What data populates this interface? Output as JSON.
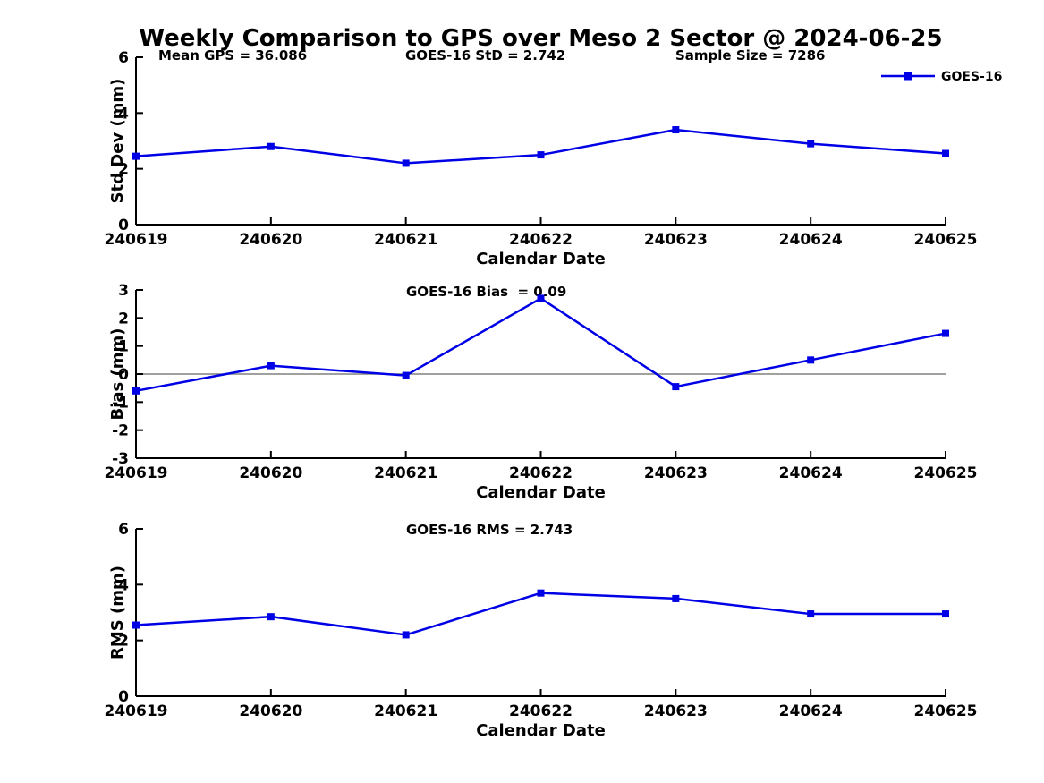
{
  "figure": {
    "title": "Weekly Comparison to GPS over Meso 2 Sector @ 2024-06-25"
  },
  "colors": {
    "line": "#0000e6",
    "zero_line": "#808080",
    "axis": "#000000",
    "text": "#000000",
    "background": "#ffffff"
  },
  "legend": {
    "label": "GOES-16",
    "position": "top-right",
    "marker": "filled-square"
  },
  "chart_data": [
    {
      "type": "line",
      "name": "std-dev",
      "title": "",
      "xlabel": "Calendar Date",
      "ylabel": "Std Dev (mm)",
      "categories": [
        "240619",
        "240620",
        "240621",
        "240622",
        "240623",
        "240624",
        "240625"
      ],
      "series": [
        {
          "name": "GOES-16",
          "values": [
            2.45,
            2.8,
            2.2,
            2.5,
            3.4,
            2.9,
            2.55
          ]
        }
      ],
      "ylim": [
        0,
        6
      ],
      "yticks": [
        0,
        2,
        4,
        6
      ],
      "grid": false,
      "zero_line": false,
      "legend_visible": true,
      "annotations": [
        "Mean GPS = 36.086",
        "GOES-16 StD = 2.742",
        "Sample Size = 7286"
      ]
    },
    {
      "type": "line",
      "name": "bias",
      "title": "",
      "xlabel": "Calendar Date",
      "ylabel": "Bias (mm)",
      "categories": [
        "240619",
        "240620",
        "240621",
        "240622",
        "240623",
        "240624",
        "240625"
      ],
      "series": [
        {
          "name": "GOES-16",
          "values": [
            -0.6,
            0.3,
            -0.05,
            2.7,
            -0.45,
            0.5,
            1.45
          ]
        }
      ],
      "ylim": [
        -3,
        3
      ],
      "yticks": [
        -3,
        -2,
        -1,
        0,
        1,
        2,
        3
      ],
      "grid": false,
      "zero_line": true,
      "legend_visible": false,
      "annotations": [
        "GOES-16 Bias  = 0.09"
      ]
    },
    {
      "type": "line",
      "name": "rms",
      "title": "",
      "xlabel": "Calendar Date",
      "ylabel": "RMS (mm)",
      "categories": [
        "240619",
        "240620",
        "240621",
        "240622",
        "240623",
        "240624",
        "240625"
      ],
      "series": [
        {
          "name": "GOES-16",
          "values": [
            2.55,
            2.85,
            2.2,
            3.7,
            3.5,
            2.95,
            2.95
          ]
        }
      ],
      "ylim": [
        0,
        6
      ],
      "yticks": [
        0,
        2,
        4,
        6
      ],
      "grid": false,
      "zero_line": false,
      "legend_visible": false,
      "annotations": [
        "GOES-16 RMS = 2.743"
      ]
    }
  ]
}
